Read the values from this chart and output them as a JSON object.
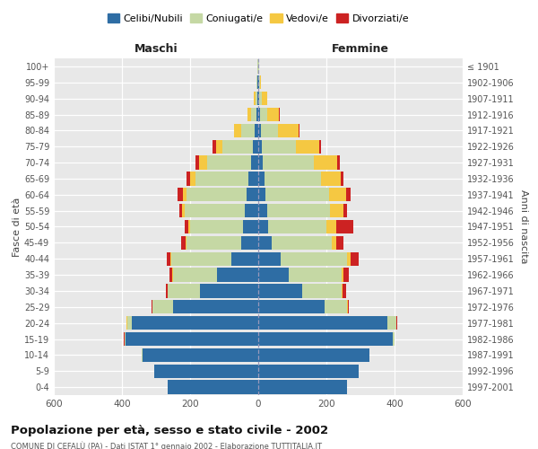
{
  "age_groups": [
    "0-4",
    "5-9",
    "10-14",
    "15-19",
    "20-24",
    "25-29",
    "30-34",
    "35-39",
    "40-44",
    "45-49",
    "50-54",
    "55-59",
    "60-64",
    "65-69",
    "70-74",
    "75-79",
    "80-84",
    "85-89",
    "90-94",
    "95-99",
    "100+"
  ],
  "birth_years": [
    "1997-2001",
    "1992-1996",
    "1987-1991",
    "1982-1986",
    "1977-1981",
    "1972-1976",
    "1967-1971",
    "1962-1966",
    "1957-1961",
    "1952-1956",
    "1947-1951",
    "1942-1946",
    "1937-1941",
    "1932-1936",
    "1927-1931",
    "1922-1926",
    "1917-1921",
    "1912-1916",
    "1907-1911",
    "1902-1906",
    "≤ 1901"
  ],
  "maschi": {
    "celibi": [
      265,
      305,
      340,
      390,
      370,
      250,
      170,
      120,
      80,
      50,
      45,
      40,
      35,
      28,
      20,
      15,
      10,
      6,
      3,
      2,
      1
    ],
    "coniugati": [
      0,
      0,
      2,
      3,
      15,
      60,
      95,
      130,
      175,
      160,
      155,
      175,
      175,
      155,
      130,
      90,
      40,
      15,
      5,
      2,
      1
    ],
    "vedovi": [
      0,
      0,
      0,
      0,
      1,
      1,
      1,
      2,
      3,
      4,
      5,
      8,
      12,
      18,
      25,
      20,
      20,
      10,
      5,
      1,
      0
    ],
    "divorziati": [
      0,
      0,
      0,
      1,
      2,
      3,
      5,
      8,
      10,
      12,
      10,
      8,
      15,
      10,
      10,
      8,
      1,
      1,
      0,
      0,
      0
    ]
  },
  "femmine": {
    "nubili": [
      260,
      295,
      325,
      395,
      380,
      195,
      130,
      90,
      65,
      40,
      30,
      25,
      22,
      18,
      12,
      10,
      8,
      6,
      3,
      2,
      1
    ],
    "coniugate": [
      0,
      1,
      2,
      5,
      25,
      65,
      115,
      155,
      195,
      175,
      170,
      185,
      185,
      165,
      150,
      100,
      50,
      20,
      8,
      2,
      1
    ],
    "vedove": [
      0,
      0,
      0,
      0,
      1,
      2,
      3,
      5,
      10,
      15,
      30,
      40,
      50,
      60,
      70,
      70,
      60,
      35,
      15,
      3,
      0
    ],
    "divorziate": [
      0,
      0,
      0,
      1,
      3,
      5,
      10,
      15,
      25,
      20,
      50,
      10,
      15,
      8,
      8,
      5,
      2,
      1,
      1,
      0,
      0
    ]
  },
  "colors": {
    "celibe": "#2E6DA4",
    "coniugato": "#C5D8A4",
    "vedovo": "#F5C842",
    "divorziato": "#CC2222"
  },
  "xlim": 600,
  "title": "Popolazione per età, sesso e stato civile - 2002",
  "subtitle": "COMUNE DI CEFALÙ (PA) - Dati ISTAT 1° gennaio 2002 - Elaborazione TUTTITALIA.IT",
  "legend_labels": [
    "Celibi/Nubili",
    "Coniugati/e",
    "Vedovi/e",
    "Divorziati/e"
  ],
  "xlabel_left": "Maschi",
  "xlabel_right": "Femmine",
  "ylabel_left": "Fasce di età",
  "ylabel_right": "Anni di nascita",
  "xticks": [
    -600,
    -400,
    -200,
    0,
    200,
    400,
    600
  ]
}
